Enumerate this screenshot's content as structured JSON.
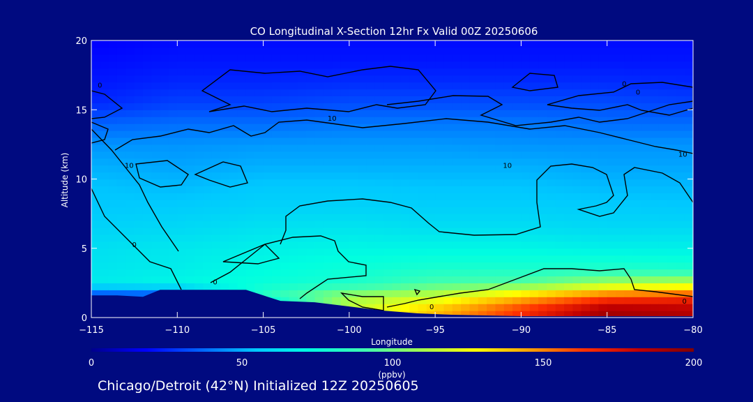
{
  "chart_data": {
    "type": "heatmap",
    "title": "CO Longitudinal X-Section 12hr  Fx Valid 00Z 20250606",
    "xlabel": "Longitude",
    "ylabel": "Altitude (km)",
    "xlim": [
      -115,
      -80
    ],
    "ylim": [
      0,
      20
    ],
    "x_ticks": [
      -115,
      -110,
      -105,
      -100,
      -95,
      -90,
      -85,
      -80
    ],
    "x_tick_labels": [
      "−115",
      "−110",
      "−105",
      "−100",
      "−95",
      "−90",
      "−85",
      "−80"
    ],
    "y_ticks": [
      0,
      5,
      10,
      15,
      20
    ],
    "y_tick_labels": [
      "0",
      "5",
      "10",
      "15",
      "20"
    ],
    "colorbar": {
      "range": [
        0,
        200
      ],
      "ticks": [
        "0",
        "50",
        "100",
        "150",
        "200"
      ],
      "unit": "(ppbv)",
      "colors": [
        "#00008c",
        "#0000ff",
        "#0064ff",
        "#00c8ff",
        "#00ffe0",
        "#40ffb0",
        "#a0ff50",
        "#ffff00",
        "#ffa000",
        "#ff3000",
        "#c00000",
        "#800000"
      ]
    },
    "altitude_levels": [
      0.5,
      1.5,
      2.5,
      3.5,
      5,
      6.5,
      8,
      9.5,
      11,
      12.5,
      14,
      15.5,
      17,
      18.5,
      20
    ],
    "profiles": [
      {
        "lon": -115,
        "co": [
          28,
          28,
          66,
          64,
          62,
          58,
          55,
          54,
          50,
          45,
          36,
          25,
          22,
          20,
          18
        ]
      },
      {
        "lon": -110,
        "co": [
          28,
          28,
          70,
          67,
          65,
          60,
          56,
          52,
          48,
          45,
          38,
          30,
          25,
          22,
          20
        ]
      },
      {
        "lon": -105,
        "co": [
          30,
          85,
          75,
          72,
          68,
          63,
          58,
          55,
          50,
          46,
          38,
          30,
          25,
          22,
          20
        ]
      },
      {
        "lon": -100,
        "co": [
          115,
          110,
          80,
          76,
          70,
          64,
          58,
          55,
          50,
          46,
          40,
          32,
          26,
          22,
          20
        ]
      },
      {
        "lon": -95,
        "co": [
          140,
          118,
          92,
          80,
          70,
          62,
          57,
          54,
          50,
          46,
          40,
          32,
          26,
          22,
          20
        ]
      },
      {
        "lon": -90,
        "co": [
          165,
          140,
          95,
          80,
          70,
          62,
          57,
          54,
          50,
          45,
          40,
          32,
          26,
          22,
          20
        ]
      },
      {
        "lon": -85,
        "co": [
          190,
          160,
          110,
          82,
          68,
          60,
          56,
          52,
          48,
          45,
          38,
          32,
          26,
          22,
          20
        ]
      },
      {
        "lon": -80,
        "co": [
          185,
          165,
          115,
          80,
          68,
          60,
          55,
          52,
          48,
          45,
          38,
          30,
          25,
          22,
          20
        ]
      }
    ],
    "terrain_lon": [
      -115,
      -113.5,
      -112,
      -111,
      -110,
      -108,
      -106,
      -104,
      -102,
      -100,
      -98,
      -96,
      -94,
      -92,
      -90,
      -80
    ],
    "terrain_km": [
      1.6,
      1.6,
      1.5,
      2.0,
      2.0,
      2.0,
      2.0,
      1.2,
      1.1,
      0.8,
      0.5,
      0.3,
      0.2,
      0.15,
      0.1,
      0.1
    ],
    "contour_labels": [
      {
        "text": "10",
        "lon": -101,
        "alt": 14.2
      },
      {
        "text": "10",
        "lon": -112.8,
        "alt": 10.8
      },
      {
        "text": "10",
        "lon": -90.8,
        "alt": 10.8
      },
      {
        "text": "10",
        "lon": -80.6,
        "alt": 11.6
      },
      {
        "text": "0",
        "lon": -114.5,
        "alt": 16.6
      },
      {
        "text": "0",
        "lon": -84,
        "alt": 16.7
      },
      {
        "text": "0",
        "lon": -83.2,
        "alt": 16.1
      },
      {
        "text": "0",
        "lon": -112.5,
        "alt": 5.1
      },
      {
        "text": "0",
        "lon": -107.8,
        "alt": 2.4
      },
      {
        "text": "0",
        "lon": -95.2,
        "alt": 0.6
      },
      {
        "text": "0",
        "lon": -80.5,
        "alt": 1.0
      }
    ]
  },
  "subtitle": "Chicago/Detroit (42°N) Initialized 12Z 20250605"
}
